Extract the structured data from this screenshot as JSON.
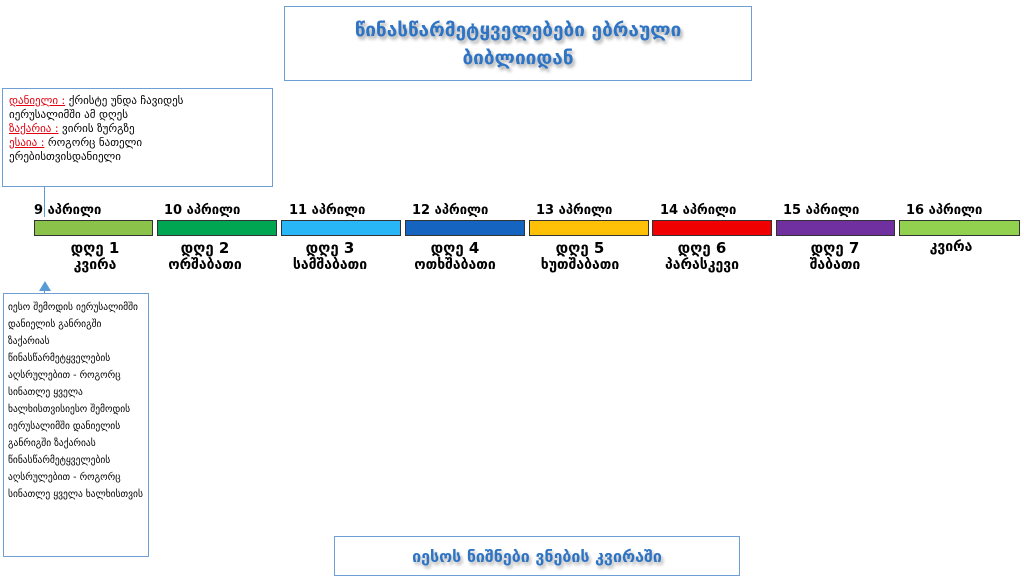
{
  "title": {
    "line1": "წინასწარმეტყველებები ებრაული",
    "line2": "ბიბლიიდან"
  },
  "prophecies": [
    {
      "prophet": "დანიელი :",
      "text": " ქრისტე უნდა ჩავიდეს"
    },
    {
      "prophet": "",
      "text": "იერუსალიმში  ამ დღეს"
    },
    {
      "prophet": "ზაქარია :",
      "text": " ვირის ზურგზე"
    },
    {
      "prophet": "ესაია :",
      "text": " როგორც ნათელი"
    },
    {
      "prophet": "",
      "text": "ერებისთვისდანიელი"
    }
  ],
  "timeline": [
    {
      "date": "9 აპრილი",
      "day": "დღე 1",
      "name": "კვირა",
      "color": "#8bc34a"
    },
    {
      "date": "10 აპრილი",
      "day": "დღე 2",
      "name": "ორშაბათი",
      "color": "#00a651"
    },
    {
      "date": "11 აპრილი",
      "day": "დღე 3",
      "name": "სამშაბათი",
      "color": "#29b6f6"
    },
    {
      "date": "12 აპრილი",
      "day": "დღე 4",
      "name": "ოთხშაბათი",
      "color": "#1565c0"
    },
    {
      "date": "13 აპრილი",
      "day": "დღე 5",
      "name": "ხუთშაბათი",
      "color": "#ffc107"
    },
    {
      "date": "14 აპრილი",
      "day": "დღე 6",
      "name": "პარასკევი",
      "color": "#f00000"
    },
    {
      "date": "15 აპრილი",
      "day": "დღე 7",
      "name": "შაბათი",
      "color": "#7030a0"
    },
    {
      "date": "16 აპრილი",
      "day": "",
      "name": "კვირა",
      "color": "#92d050"
    }
  ],
  "detail": {
    "text": "იესო შემოდის იერუსალიმში დანიელის განრიგში ზაქარიას წინასწარმეტყველების აღსრულებით - როგორც სინათლე ყველა ხალხისთვისიესო შემოდის იერუსალიმში დანიელის განრიგში ზაქარიას წინასწარმეტყველების აღსრულებით - როგორც სინათლე ყველა ხალხისთვის"
  },
  "footer": {
    "text": "იესოს ნიშნები ვნების კვირაში"
  }
}
